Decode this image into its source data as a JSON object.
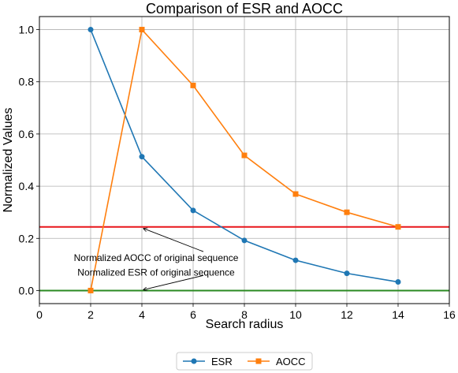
{
  "chart_data": {
    "type": "line",
    "title": "Comparison of ESR and AOCC",
    "xlabel": "Search radius",
    "ylabel": "Normalized Values",
    "xlim": [
      0,
      16
    ],
    "ylim": [
      -0.05,
      1.05
    ],
    "xticks": [
      0,
      2,
      4,
      6,
      8,
      10,
      12,
      14,
      16
    ],
    "yticks": [
      0.0,
      0.2,
      0.4,
      0.6,
      0.8,
      1.0
    ],
    "ytick_labels": [
      "0.0",
      "0.2",
      "0.4",
      "0.6",
      "0.8",
      "1.0"
    ],
    "grid": true,
    "legend_placement": "bottom-center-outside",
    "x": [
      2,
      4,
      6,
      8,
      10,
      12,
      14
    ],
    "series": [
      {
        "name": "ESR",
        "color": "#1f77b4",
        "marker": "circle",
        "values": [
          1.0,
          0.513,
          0.307,
          0.192,
          0.116,
          0.066,
          0.033
        ]
      },
      {
        "name": "AOCC",
        "color": "#ff7f0e",
        "marker": "square",
        "values": [
          0.0,
          1.0,
          0.786,
          0.518,
          0.37,
          0.3,
          0.244
        ]
      }
    ],
    "hlines": [
      {
        "y": 0.244,
        "color": "#e8161b"
      },
      {
        "y": 0.0,
        "color": "#2a8a22"
      }
    ],
    "annotations": [
      {
        "text": "Normalized AOCC of original sequence",
        "x_text": 6.4,
        "y_text": 0.125,
        "x_arrow": 4.0,
        "y_arrow": 0.244
      },
      {
        "text": "Normalized ESR of original sequence",
        "x_text": 6.4,
        "y_text": 0.07,
        "x_arrow": 4.0,
        "y_arrow": 0.0
      }
    ]
  }
}
